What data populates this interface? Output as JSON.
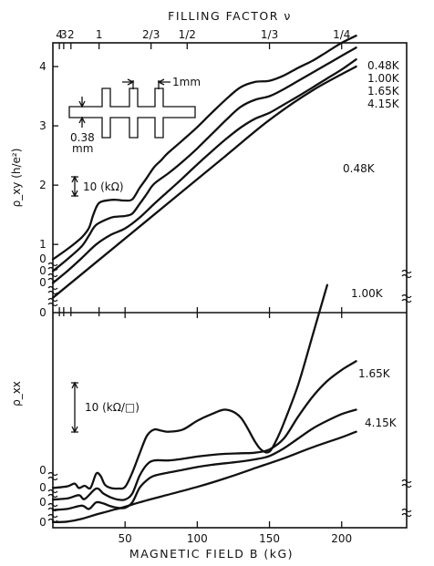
{
  "chart_data": {
    "type": "line",
    "top_axis": {
      "title": "FILLING FACTOR ν",
      "ticks": [
        {
          "label": "4",
          "b": 4.5
        },
        {
          "label": "3",
          "b": 7.5
        },
        {
          "label": "2",
          "b": 12.5
        },
        {
          "label": "1",
          "b": 32
        },
        {
          "label": "2/3",
          "b": 68
        },
        {
          "label": "1/2",
          "b": 93
        },
        {
          "label": "1/3",
          "b": 150
        },
        {
          "label": "1/4",
          "b": 200
        }
      ]
    },
    "xlabel": "MAGNETIC FIELD B (kG)",
    "xlim": [
      0,
      245
    ],
    "xticks": [
      "50",
      "100",
      "150",
      "200"
    ],
    "rho_xy": {
      "ylabel": "ρ_xy (h/e²)",
      "ylim": [
        -0.15,
        4.4
      ],
      "yticks": [
        "1",
        "2",
        "3",
        "4"
      ],
      "offset_zeros": [
        "0",
        "0",
        "0",
        "0"
      ],
      "scale_bar_label": "10 (kΩ)",
      "inset": {
        "width_label": "1mm",
        "height_label": "0.38 mm"
      },
      "series": [
        {
          "name": "0.48K",
          "offset": 0.75,
          "x": [
            0,
            10,
            20,
            25,
            28,
            32,
            40,
            45,
            50,
            55,
            60,
            65,
            70,
            75,
            80,
            90,
            100,
            110,
            120,
            130,
            140,
            150,
            160,
            170,
            180,
            190,
            200,
            210
          ],
          "y": [
            0.75,
            0.92,
            1.12,
            1.28,
            1.5,
            1.7,
            1.75,
            1.75,
            1.74,
            1.76,
            1.95,
            2.12,
            2.3,
            2.42,
            2.55,
            2.76,
            2.98,
            3.22,
            3.45,
            3.65,
            3.74,
            3.76,
            3.85,
            3.98,
            4.1,
            4.25,
            4.4,
            4.52
          ]
        },
        {
          "name": "1.00K",
          "offset": 0.55,
          "x": [
            0,
            10,
            20,
            25,
            30,
            40,
            45,
            50,
            55,
            60,
            65,
            70,
            80,
            90,
            100,
            110,
            120,
            130,
            140,
            150,
            160,
            170,
            180,
            190,
            200,
            210
          ],
          "y": [
            0.55,
            0.75,
            0.97,
            1.15,
            1.33,
            1.45,
            1.47,
            1.48,
            1.52,
            1.68,
            1.85,
            2.02,
            2.2,
            2.4,
            2.62,
            2.86,
            3.1,
            3.32,
            3.44,
            3.5,
            3.62,
            3.76,
            3.9,
            4.04,
            4.18,
            4.32
          ]
        },
        {
          "name": "1.65K",
          "offset": 0.35,
          "x": [
            0,
            10,
            20,
            30,
            40,
            50,
            60,
            70,
            80,
            90,
            100,
            110,
            120,
            130,
            140,
            150,
            160,
            170,
            180,
            190,
            200,
            210
          ],
          "y": [
            0.35,
            0.55,
            0.77,
            1.0,
            1.16,
            1.27,
            1.45,
            1.68,
            1.9,
            2.12,
            2.35,
            2.57,
            2.78,
            2.97,
            3.12,
            3.22,
            3.36,
            3.5,
            3.65,
            3.8,
            3.95,
            4.12
          ]
        },
        {
          "name": "4.15K",
          "offset": 0.1,
          "x": [
            0,
            30,
            60,
            90,
            120,
            150,
            180,
            210
          ],
          "y": [
            0.1,
            0.7,
            1.3,
            1.9,
            2.5,
            3.1,
            3.6,
            4.0
          ]
        }
      ]
    },
    "rho_xx": {
      "ylabel": "ρ_xx",
      "ylim": [
        -0.5,
        19
      ],
      "offset_zeros": [
        "0",
        "0",
        "0",
        "0"
      ],
      "scale_bar_label": "10 (kΩ/□)",
      "series": [
        {
          "name": "0.48K",
          "offset": 3.0,
          "x": [
            0,
            10,
            15,
            18,
            22,
            26,
            30,
            33,
            36,
            40,
            45,
            50,
            55,
            60,
            65,
            70,
            75,
            80,
            90,
            100,
            110,
            120,
            130,
            140,
            145,
            150,
            155,
            160,
            170,
            180,
            190
          ],
          "y": [
            3.1,
            3.25,
            3.5,
            3.1,
            3.3,
            3.1,
            4.4,
            4.2,
            3.4,
            3.1,
            3.05,
            3.2,
            4.5,
            6.2,
            7.8,
            8.4,
            8.3,
            8.2,
            8.4,
            9.2,
            9.8,
            10.2,
            9.5,
            7.3,
            6.5,
            6.4,
            7.5,
            9.0,
            12.5,
            17.0,
            21.5
          ]
        },
        {
          "name": "1.00K",
          "offset": 2.0,
          "x": [
            0,
            10,
            18,
            22,
            30,
            35,
            40,
            45,
            50,
            55,
            60,
            65,
            70,
            80,
            90,
            100,
            110,
            120,
            130,
            140,
            150,
            160,
            170,
            180,
            190,
            200,
            210
          ],
          "y": [
            2.05,
            2.15,
            2.45,
            2.1,
            3.05,
            2.6,
            2.25,
            2.05,
            2.05,
            2.6,
            4.2,
            5.2,
            5.6,
            5.6,
            5.75,
            5.95,
            6.1,
            6.2,
            6.25,
            6.3,
            6.6,
            7.6,
            9.6,
            11.4,
            12.8,
            13.8,
            14.6
          ]
        },
        {
          "name": "1.65K",
          "offset": 1.0,
          "x": [
            0,
            10,
            20,
            25,
            30,
            35,
            40,
            45,
            50,
            55,
            60,
            65,
            70,
            80,
            90,
            100,
            110,
            120,
            130,
            140,
            150,
            160,
            170,
            180,
            190,
            200,
            210
          ],
          "y": [
            1.1,
            1.2,
            1.5,
            1.2,
            1.8,
            1.7,
            1.45,
            1.3,
            1.3,
            1.8,
            3.1,
            3.8,
            4.2,
            4.5,
            4.75,
            5.0,
            5.2,
            5.35,
            5.5,
            5.7,
            6.0,
            6.7,
            7.6,
            8.5,
            9.2,
            9.8,
            10.2
          ]
        },
        {
          "name": "4.15K",
          "offset": 0.0,
          "x": [
            0,
            10,
            20,
            30,
            40,
            50,
            60,
            80,
            100,
            120,
            140,
            160,
            180,
            200,
            210
          ],
          "y": [
            0.0,
            0.05,
            0.3,
            0.7,
            1.05,
            1.4,
            1.8,
            2.5,
            3.2,
            4.0,
            4.9,
            5.8,
            6.8,
            7.7,
            8.2
          ]
        }
      ]
    },
    "grid": false,
    "legend": "labels at curve ends"
  }
}
